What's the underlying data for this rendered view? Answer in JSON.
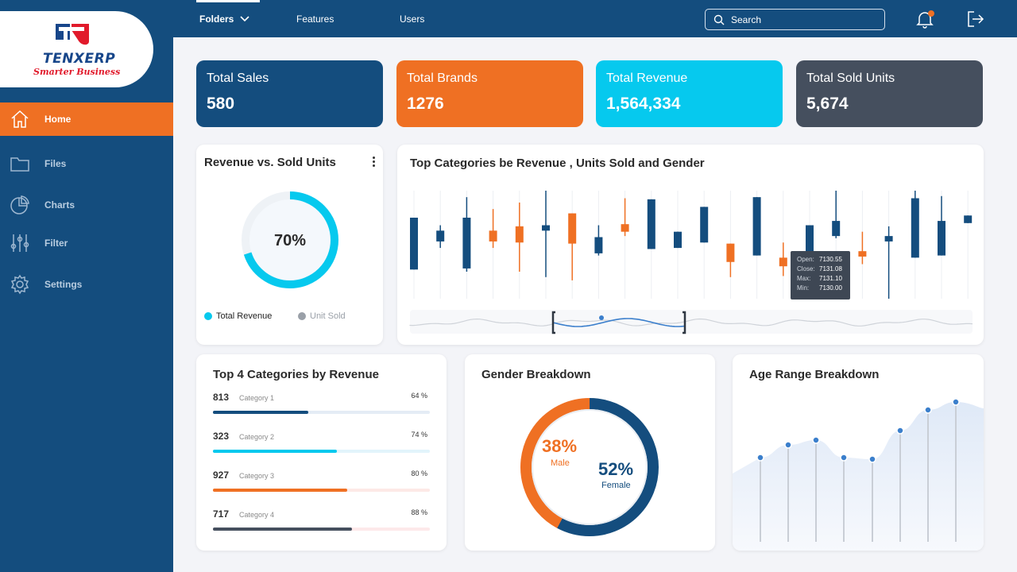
{
  "brand": {
    "name": "TENXERP",
    "tagline": "Smarter Business"
  },
  "nav": {
    "items": [
      {
        "label": "Home",
        "icon": "home-icon"
      },
      {
        "label": "Files",
        "icon": "folder-icon"
      },
      {
        "label": "Charts",
        "icon": "pie-chart-icon"
      },
      {
        "label": "Filter",
        "icon": "sliders-icon"
      },
      {
        "label": "Settings",
        "icon": "gear-icon"
      }
    ],
    "active": "Home"
  },
  "topbar": {
    "tabs": [
      "Folders",
      "Features",
      "Users"
    ],
    "active_tab": "Folders",
    "search_placeholder": "Search",
    "notification_color": "#ef7023"
  },
  "kpis": [
    {
      "label": "Total Sales",
      "value": "580",
      "color": "#144d7e"
    },
    {
      "label": "Total Brands",
      "value": "1276",
      "color": "#ef7023"
    },
    {
      "label": "Total Revenue",
      "value": "1,564,334",
      "color": "#06c9ee"
    },
    {
      "label": "Total Sold Units",
      "value": "5,674",
      "color": "#454f5e"
    }
  ],
  "revenue_vs_units": {
    "title": "Revenue vs. Sold Units",
    "percent_label": "70%",
    "percent": 0.7,
    "legend": [
      {
        "label": "Total Revenue",
        "color": "#06c9ee"
      },
      {
        "label": "Unit Sold",
        "color": "#9aa0a8"
      }
    ]
  },
  "top_categories_chart": {
    "title": "Top Categories be Revenue , Units Sold and Gender",
    "tooltip": [
      {
        "label": "Open:",
        "value": "7130.55"
      },
      {
        "label": "Close:",
        "value": "7131.08"
      },
      {
        "label": "Max:",
        "value": "7131.10"
      },
      {
        "label": "Min:",
        "value": "7130.00"
      }
    ]
  },
  "chart_data": [
    {
      "type": "candlestick",
      "title": "Top Categories be Revenue , Units Sold and Gender",
      "colors": {
        "up": "#144d7e",
        "down": "#ef7023"
      },
      "candles": [
        {
          "open": 0.75,
          "close": 0.27,
          "high": 0.75,
          "low": 0.27,
          "dir": "up"
        },
        {
          "open": 0.63,
          "close": 0.53,
          "high": 0.68,
          "low": 0.47,
          "dir": "up"
        },
        {
          "open": 0.75,
          "close": 0.28,
          "high": 0.94,
          "low": 0.25,
          "dir": "up"
        },
        {
          "open": 0.63,
          "close": 0.53,
          "high": 0.83,
          "low": 0.47,
          "dir": "down"
        },
        {
          "open": 0.67,
          "close": 0.52,
          "high": 0.89,
          "low": 0.25,
          "dir": "down"
        },
        {
          "open": 0.68,
          "close": 0.63,
          "high": 1.0,
          "low": 0.2,
          "dir": "up"
        },
        {
          "open": 0.51,
          "close": 0.79,
          "high": 0.79,
          "low": 0.17,
          "dir": "down"
        },
        {
          "open": 0.57,
          "close": 0.42,
          "high": 0.68,
          "low": 0.4,
          "dir": "up"
        },
        {
          "open": 0.62,
          "close": 0.69,
          "high": 0.93,
          "low": 0.58,
          "dir": "down"
        },
        {
          "open": 0.92,
          "close": 0.46,
          "high": 0.92,
          "low": 0.46,
          "dir": "up"
        },
        {
          "open": 0.62,
          "close": 0.47,
          "high": 0.62,
          "low": 0.47,
          "dir": "up"
        },
        {
          "open": 0.85,
          "close": 0.52,
          "high": 0.85,
          "low": 0.52,
          "dir": "up"
        },
        {
          "open": 0.51,
          "close": 0.34,
          "high": 0.51,
          "low": 0.2,
          "dir": "down"
        },
        {
          "open": 0.94,
          "close": 0.4,
          "high": 0.94,
          "low": 0.4,
          "dir": "up"
        },
        {
          "open": 0.38,
          "close": 0.3,
          "high": 0.52,
          "low": 0.21,
          "dir": "down"
        },
        {
          "open": 0.68,
          "close": 0.23,
          "high": 0.68,
          "low": 0.23,
          "dir": "up"
        },
        {
          "open": 0.72,
          "close": 0.58,
          "high": 1.0,
          "low": 0.56,
          "dir": "up"
        },
        {
          "open": 0.44,
          "close": 0.39,
          "high": 0.62,
          "low": 0.32,
          "dir": "down"
        },
        {
          "open": 0.58,
          "close": 0.53,
          "high": 0.67,
          "low": 0.0,
          "dir": "up"
        },
        {
          "open": 0.93,
          "close": 0.38,
          "high": 1.0,
          "low": 0.38,
          "dir": "up"
        },
        {
          "open": 0.72,
          "close": 0.4,
          "high": 0.95,
          "low": 0.4,
          "dir": "up"
        },
        {
          "open": 0.77,
          "close": 0.7,
          "high": 0.77,
          "low": 0.7,
          "dir": "up"
        }
      ]
    },
    {
      "type": "donut",
      "title": "Gender Breakdown",
      "slices": [
        {
          "name": "Female",
          "value": 52,
          "color": "#144d7e"
        },
        {
          "name": "Male",
          "value": 38,
          "color": "#ef7023"
        }
      ]
    },
    {
      "type": "area",
      "title": "Age Range Breakdown",
      "values": [
        0.55,
        0.63,
        0.66,
        0.55,
        0.54,
        0.72,
        0.85,
        0.9
      ],
      "ylim": [
        0,
        1
      ]
    }
  ],
  "top4": {
    "title": "Top 4 Categories by Revenue",
    "rows": [
      {
        "value": "813",
        "name": "Category 1",
        "pct_label": "64 %",
        "fill": 0.44,
        "color": "#144d7e",
        "track": "#e4ecf5"
      },
      {
        "value": "323",
        "name": "Category  2",
        "pct_label": "74 %",
        "fill": 0.57,
        "color": "#06c9ee",
        "track": "#e2f4fb"
      },
      {
        "value": "927",
        "name": "Category 3",
        "pct_label": "80 %",
        "fill": 0.62,
        "color": "#ef7023",
        "track": "#fde9e6"
      },
      {
        "value": "717",
        "name": "Category 4",
        "pct_label": "88 %",
        "fill": 0.64,
        "color": "#454f5e",
        "track": "#fde9ea"
      }
    ]
  },
  "gender": {
    "title": "Gender Breakdown",
    "male_pct": "38%",
    "male_label": "Male",
    "female_pct": "52%",
    "female_label": "Female"
  },
  "age": {
    "title": "Age Range Breakdown"
  }
}
